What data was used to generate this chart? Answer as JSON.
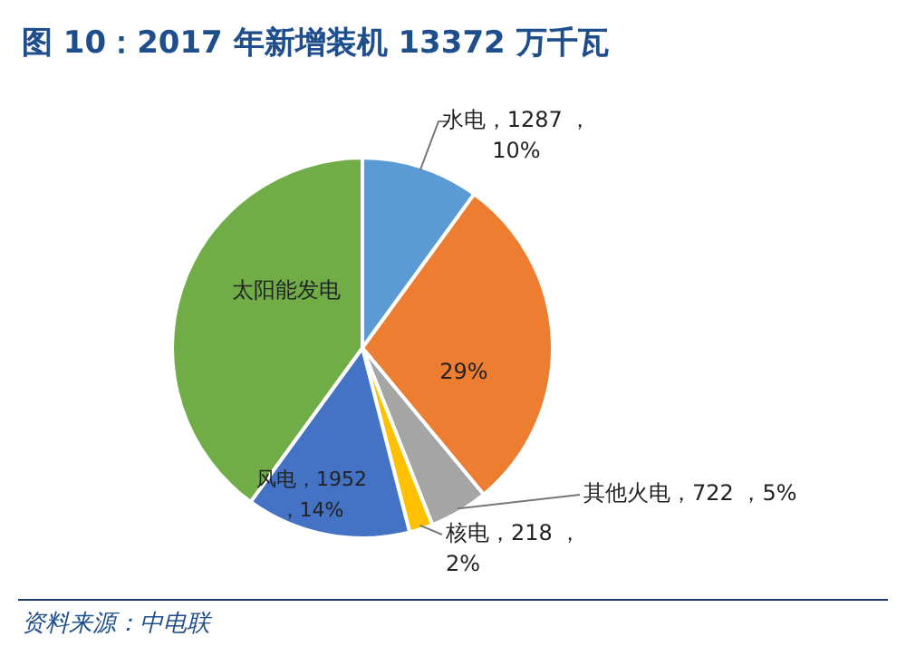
{
  "chart_data": {
    "type": "pie",
    "title": "图 10：2017 年新增装机 13372 万千瓦",
    "categories": [
      "水电",
      null,
      "其他火电",
      "核电",
      "风电",
      "太阳能发电"
    ],
    "values": [
      10,
      29,
      5,
      2,
      14,
      40
    ],
    "value_labels": [
      "1287 ，10%",
      "29%",
      "722 ，5%",
      "218 ，2%",
      "1952 ，14%",
      null
    ],
    "colors": [
      "#5b9bd5",
      "#ed7d31",
      "#a5a5a5",
      "#ffc000",
      "#4472c4",
      "#70ad47"
    ],
    "annotations": [
      "资料来源：中电联"
    ]
  }
}
